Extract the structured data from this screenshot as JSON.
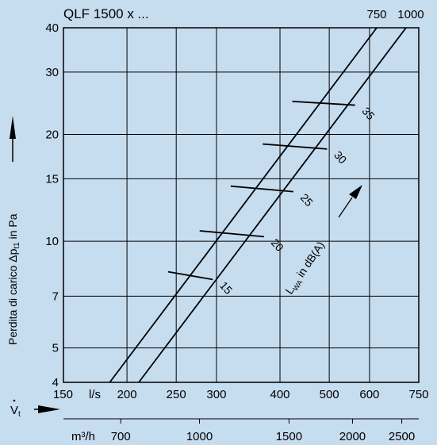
{
  "chart_data": {
    "type": "line",
    "title": "QLF 1500 x ...",
    "ylabel": "Perdita di carico Δp",
    "ylabel_sub": "t1",
    "ylabel_unit": " in Pa",
    "x_scale": "log",
    "y_scale": "log",
    "x_unit": "l/s",
    "x2_unit": "m³/h",
    "xlim": [
      150,
      750
    ],
    "ylim": [
      4,
      40
    ],
    "x_ticks": [
      150,
      200,
      250,
      300,
      400,
      500,
      600,
      750
    ],
    "x_ticks_labels": [
      "150",
      "200",
      "250",
      "300",
      "400",
      "500",
      "600",
      "750"
    ],
    "x2_ticks": [
      700,
      1000,
      1500,
      2000,
      2500
    ],
    "x2_ticks_labels": [
      "700",
      "1000",
      "1500",
      "2000",
      "2500"
    ],
    "y_ticks": [
      4,
      5,
      7,
      10,
      15,
      20,
      30,
      40
    ],
    "y_ticks_labels": [
      "4",
      "5",
      "7",
      "10",
      "15",
      "20",
      "30",
      "40"
    ],
    "grid": true,
    "flow_symbol": "V",
    "flow_sub": "t",
    "sound_label": "L",
    "sound_sub": "WA",
    "sound_unit": " in dB(A)",
    "series": [
      {
        "name": "750",
        "x": [
          185,
          620
        ],
        "y": [
          4,
          40
        ]
      },
      {
        "name": "1000",
        "x": [
          211,
          708
        ],
        "y": [
          4,
          40
        ]
      }
    ],
    "isolines": [
      {
        "label": "15",
        "x": [
          241,
          295
        ],
        "y": [
          8.2,
          7.8
        ]
      },
      {
        "label": "20",
        "x": [
          278,
          372
        ],
        "y": [
          10.7,
          10.3
        ]
      },
      {
        "label": "25",
        "x": [
          320,
          425
        ],
        "y": [
          14.3,
          13.8
        ]
      },
      {
        "label": "30",
        "x": [
          370,
          495
        ],
        "y": [
          18.8,
          18.2
        ]
      },
      {
        "label": "35",
        "x": [
          423,
          562
        ],
        "y": [
          24.8,
          24.2
        ]
      }
    ]
  }
}
